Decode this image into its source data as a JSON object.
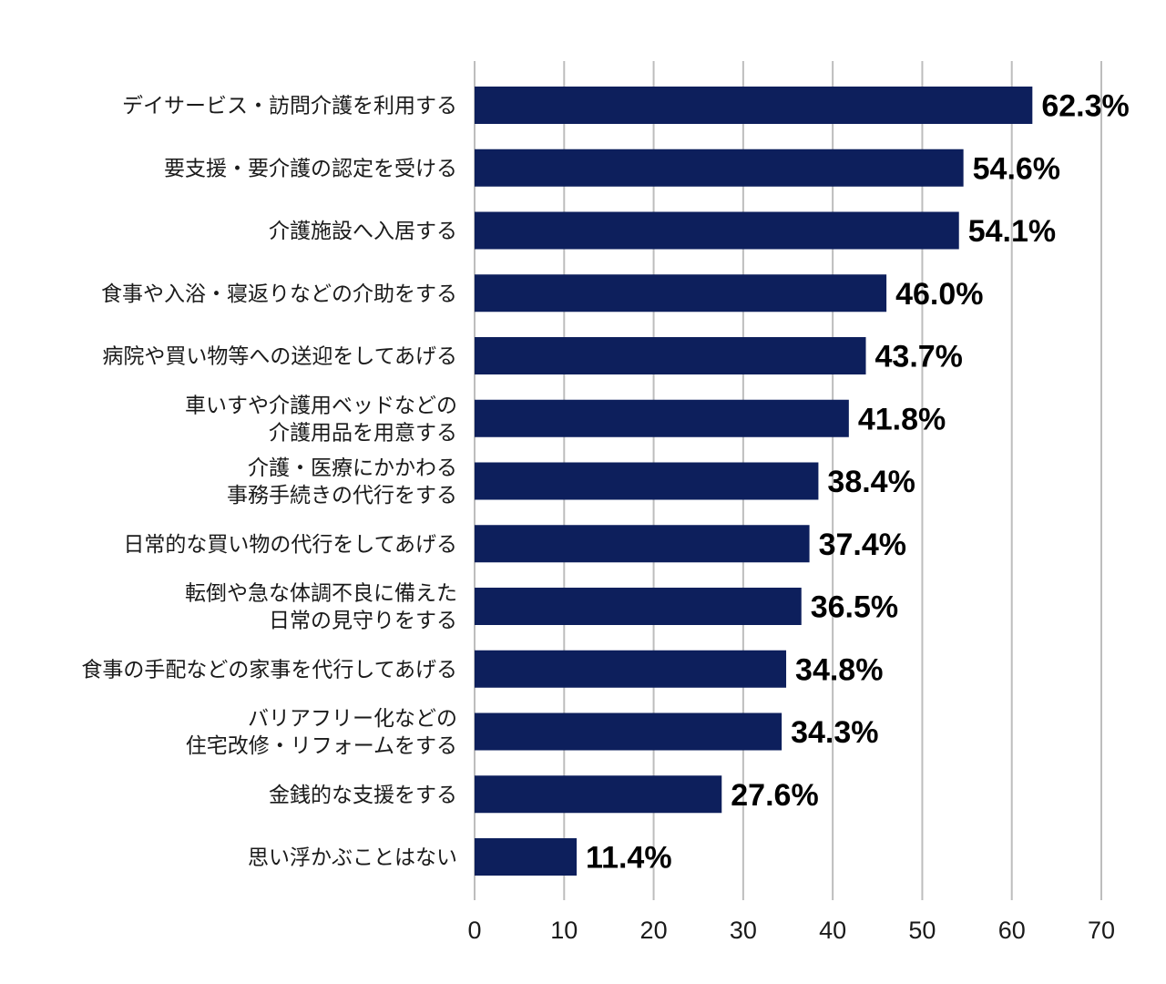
{
  "chart_data": {
    "type": "bar",
    "orientation": "horizontal",
    "categories": [
      [
        "デイサービス・訪問介護を利用する"
      ],
      [
        "要支援・要介護の認定を受ける"
      ],
      [
        "介護施設へ入居する"
      ],
      [
        "食事や入浴・寝返りなどの介助をする"
      ],
      [
        "病院や買い物等への送迎をしてあげる"
      ],
      [
        "車いすや介護用ベッドなどの",
        "介護用品を用意する"
      ],
      [
        "介護・医療にかかわる",
        "事務手続きの代行をする"
      ],
      [
        "日常的な買い物の代行をしてあげる"
      ],
      [
        "転倒や急な体調不良に備えた",
        "日常の見守りをする"
      ],
      [
        "食事の手配などの家事を代行してあげる"
      ],
      [
        "バリアフリー化などの",
        "住宅改修・リフォームをする"
      ],
      [
        "金銭的な支援をする"
      ],
      [
        "思い浮かぶことはない"
      ]
    ],
    "values": [
      62.3,
      54.6,
      54.1,
      46.0,
      43.7,
      41.8,
      38.4,
      37.4,
      36.5,
      34.8,
      34.3,
      27.6,
      11.4
    ],
    "value_labels": [
      "62.3%",
      "54.6%",
      "54.1%",
      "46.0%",
      "43.7%",
      "41.8%",
      "38.4%",
      "37.4%",
      "36.5%",
      "34.8%",
      "34.3%",
      "27.6%",
      "11.4%"
    ],
    "xlim": [
      0,
      70
    ],
    "xticks": [
      0,
      10,
      20,
      30,
      40,
      50,
      60,
      70
    ],
    "grid": true,
    "bar_color": "#0d1f5c",
    "title": "",
    "xlabel": "",
    "ylabel": ""
  }
}
